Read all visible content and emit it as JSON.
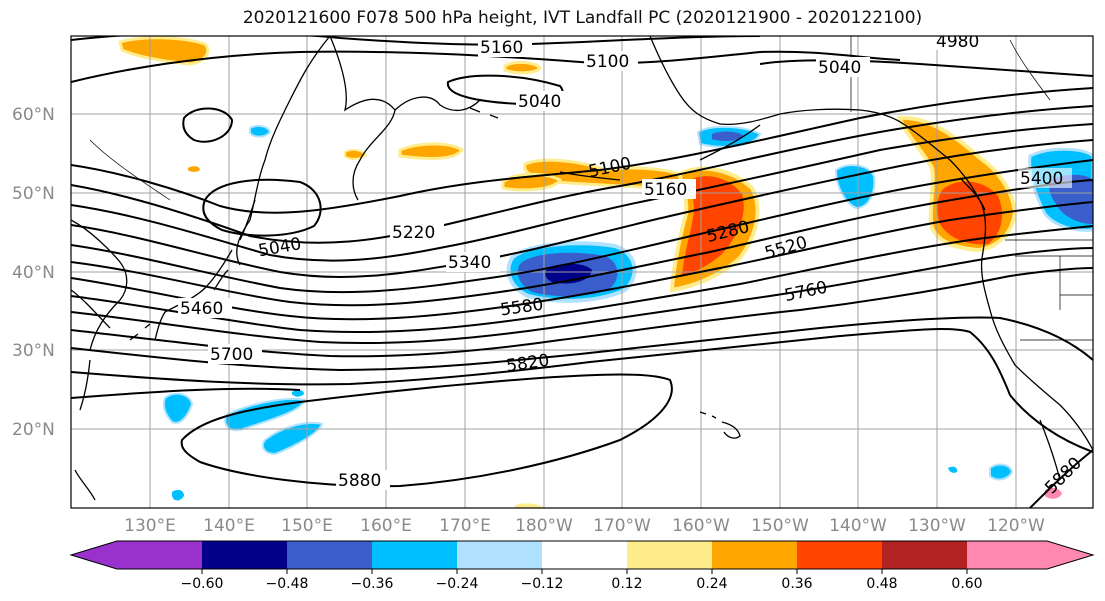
{
  "title": "2020121600 F078 500 hPa height, IVT Landfall PC (2020121900 - 2020122100)",
  "lat_labels": [
    "60°N",
    "50°N",
    "40°N",
    "30°N",
    "20°N"
  ],
  "lon_labels": [
    "130°E",
    "140°E",
    "150°E",
    "160°E",
    "170°E",
    "180°W",
    "170°W",
    "160°W",
    "150°W",
    "140°W",
    "130°W",
    "120°W"
  ],
  "contour_labels": [
    "5160",
    "5100",
    "5040",
    "4980",
    "5040",
    "5100",
    "5160",
    "5280",
    "5400",
    "5040",
    "5220",
    "5340",
    "5520",
    "5460",
    "5580",
    "5760",
    "5700",
    "5820",
    "5880",
    "5880"
  ],
  "colorbar": {
    "tick_labels": [
      "−0.60",
      "−0.48",
      "−0.36",
      "−0.24",
      "−0.12",
      "0.12",
      "0.24",
      "0.36",
      "0.48",
      "0.60"
    ],
    "colors": [
      "#9932cc",
      "#00008b",
      "#3a5fcd",
      "#00bfff",
      "#b0e2ff",
      "#ffffff",
      "#ffec8b",
      "#ffa500",
      "#ff4500",
      "#b22222",
      "#ff88b0"
    ]
  }
}
